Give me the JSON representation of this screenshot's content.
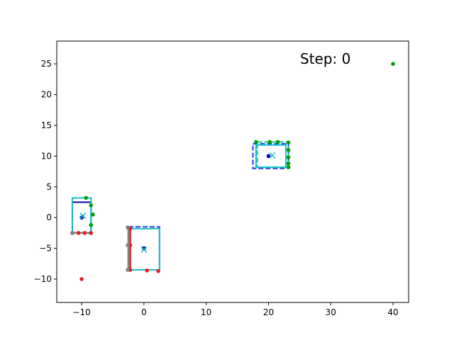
{
  "chart_data": {
    "type": "scatter",
    "title": "",
    "xlabel": "",
    "ylabel": "",
    "annotation": "Step: 0",
    "xlim": [
      -14,
      42.5
    ],
    "ylim": [
      -13.8,
      28.7
    ],
    "x_ticks": [
      -10,
      0,
      10,
      20,
      30,
      40
    ],
    "y_ticks": [
      -10,
      -5,
      0,
      5,
      10,
      15,
      20,
      25
    ],
    "grid": false,
    "legend": "none",
    "colors": {
      "navy": "#0000b0",
      "blue": "#1f3fff",
      "cyan": "#17c0c8",
      "green": "#00a000",
      "teal": "#18c8a0",
      "red": "#e02020",
      "gray": "#808080"
    },
    "rectangles": [
      {
        "x0": -11.5,
        "y0": -2.5,
        "x1": -8.5,
        "y1": 2.5,
        "color": "navy",
        "style": "solid"
      },
      {
        "x0": -11.5,
        "y0": -2.5,
        "x1": -8.5,
        "y1": 3.2,
        "color": "cyan",
        "style": "solid"
      },
      {
        "x0": -2.5,
        "y0": -8.5,
        "x1": 2.5,
        "y1": -1.5,
        "color": "blue",
        "style": "dashed"
      },
      {
        "x0": -2.5,
        "y0": -8.5,
        "x1": 2.5,
        "y1": -1.8,
        "color": "cyan",
        "style": "solid"
      },
      {
        "x0": 17.5,
        "y0": 8.0,
        "x1": 23.2,
        "y1": 12.0,
        "color": "blue",
        "style": "dashed"
      },
      {
        "x0": 18.2,
        "y0": 8.2,
        "x1": 23.2,
        "y1": 12.3,
        "color": "teal",
        "style": "dashed"
      },
      {
        "x0": 18.0,
        "y0": 8.2,
        "x1": 22.8,
        "y1": 11.8,
        "color": "cyan",
        "style": "solid"
      }
    ],
    "edges": [
      {
        "x0": -11.5,
        "y0": -2.5,
        "x1": -8.5,
        "y1": -2.5,
        "color": "gray"
      },
      {
        "x0": -2.5,
        "y0": -8.5,
        "x1": -2.5,
        "y1": -1.5,
        "color": "gray"
      },
      {
        "x0": -2.2,
        "y0": -8.5,
        "x1": -2.2,
        "y1": -1.8,
        "color": "red"
      }
    ],
    "series": [
      {
        "color": "red",
        "marker": "dot",
        "points": [
          [
            -10,
            -10
          ],
          [
            -11.5,
            -2.5
          ],
          [
            -10.5,
            -2.5
          ],
          [
            -9.5,
            -2.5
          ],
          [
            -8.5,
            -2.5
          ],
          [
            -2.2,
            -1.8
          ],
          [
            -2.2,
            -4.5
          ],
          [
            -2.2,
            -8.5
          ],
          [
            0.5,
            -8.6
          ],
          [
            2.3,
            -8.7
          ]
        ]
      },
      {
        "color": "gray",
        "marker": "dot",
        "points": [
          [
            -11.5,
            -2.5
          ],
          [
            -2.6,
            -8.5
          ],
          [
            -2.6,
            -4.5
          ],
          [
            -2.6,
            -1.6
          ]
        ]
      },
      {
        "color": "green",
        "marker": "dot",
        "points": [
          [
            40,
            25
          ],
          [
            -9.3,
            3.2
          ],
          [
            -8.5,
            2.0
          ],
          [
            -8.2,
            0.5
          ],
          [
            -8.5,
            -1.2
          ],
          [
            18.0,
            12.3
          ],
          [
            20.2,
            12.3
          ],
          [
            21.5,
            12.3
          ],
          [
            23.2,
            12.2
          ],
          [
            23.2,
            11.0
          ],
          [
            23.2,
            9.8
          ],
          [
            23.2,
            8.8
          ],
          [
            23.2,
            8.2
          ]
        ]
      },
      {
        "color": "navy",
        "marker": "dot",
        "points": [
          [
            -10,
            0
          ],
          [
            0,
            -5
          ],
          [
            20,
            10
          ]
        ]
      },
      {
        "color": "cyan",
        "marker": "x",
        "points": [
          [
            -9.8,
            0.3
          ],
          [
            0,
            -5.2
          ],
          [
            20.6,
            10.1
          ]
        ]
      }
    ]
  }
}
